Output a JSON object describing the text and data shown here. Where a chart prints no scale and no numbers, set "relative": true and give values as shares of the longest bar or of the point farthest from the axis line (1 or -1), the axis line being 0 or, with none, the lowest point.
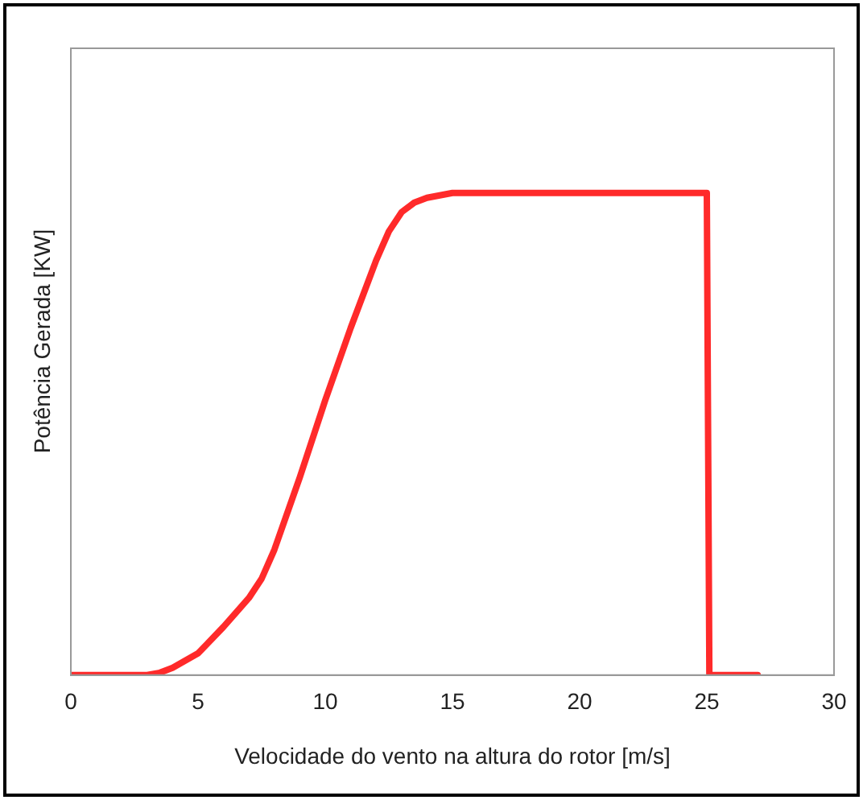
{
  "chart_data": {
    "type": "line",
    "xlabel": "Velocidade do vento na altura do rotor [m/s]",
    "ylabel": "Potência  Gerada [KW]",
    "relative": true,
    "xlim": [
      0,
      30
    ],
    "xticks": [
      0,
      5,
      10,
      15,
      20,
      25,
      30
    ],
    "grid": false,
    "legend": false,
    "marker": "none",
    "line_style": "solid",
    "series": [
      {
        "color": "#ff2a2a",
        "x": [
          0,
          3,
          3.5,
          4,
          5,
          6,
          7,
          7.5,
          8,
          9,
          10,
          11,
          12,
          12.5,
          13,
          13.5,
          14,
          15,
          20,
          25,
          25.1,
          27
        ],
        "values": [
          0,
          0,
          0.005,
          0.015,
          0.045,
          0.1,
          0.16,
          0.2,
          0.26,
          0.41,
          0.57,
          0.72,
          0.86,
          0.92,
          0.96,
          0.98,
          0.99,
          1,
          1,
          1,
          0,
          0
        ]
      }
    ]
  }
}
